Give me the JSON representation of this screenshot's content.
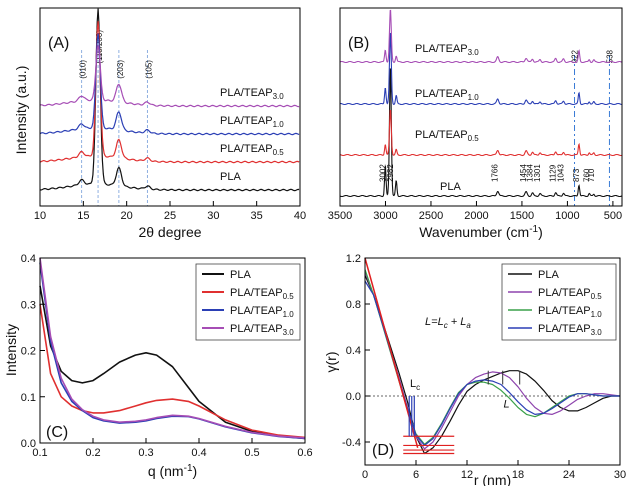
{
  "chart_data": [
    {
      "panel": "(A)",
      "type": "line",
      "xlabel": "2θ degree",
      "ylabel": "Intensity (a.u.)",
      "xlim": [
        10,
        40
      ],
      "xticks": [
        "10",
        "15",
        "20",
        "25",
        "30",
        "35",
        "40"
      ],
      "peaks": [
        {
          "label": "(010)",
          "x": 14.8
        },
        {
          "label": "(110/200)",
          "x": 16.7
        },
        {
          "label": "(203)",
          "x": 19.1
        },
        {
          "label": "(105)",
          "x": 22.4
        }
      ],
      "series": [
        {
          "name": "PLA",
          "color": "#111111",
          "offset": 0
        },
        {
          "name": "PLA/TEAP",
          "sub": "0.5",
          "color": "#e03030",
          "offset": 1
        },
        {
          "name": "PLA/TEAP",
          "sub": "1.0",
          "color": "#2b3fb5",
          "offset": 2
        },
        {
          "name": "PLA/TEAP",
          "sub": "3.0",
          "color": "#a64db5",
          "offset": 3
        }
      ]
    },
    {
      "panel": "(B)",
      "type": "line",
      "xlabel": "Wavenumber (cm",
      "xlabel_sup": "-1",
      "xlabel_end": ")",
      "xlim": [
        3500,
        400
      ],
      "xticks": [
        "3500",
        "3000",
        "2500",
        "2000",
        "1500",
        "1000",
        "500"
      ],
      "peak_labels": [
        "3002",
        "2982",
        "1766",
        "1454",
        "1384",
        "1301",
        "1129",
        "1043",
        "873",
        "760",
        "710"
      ],
      "top_peaks": [
        "922",
        "538"
      ],
      "series": [
        {
          "name": "PLA",
          "color": "#111111"
        },
        {
          "name": "PLA/TEAP",
          "sub": "0.5",
          "color": "#e03030"
        },
        {
          "name": "PLA/TEAP",
          "sub": "1.0",
          "color": "#2b3fb5"
        },
        {
          "name": "PLA/TEAP",
          "sub": "3.0",
          "color": "#a64db5"
        }
      ]
    },
    {
      "panel": "(C)",
      "type": "line",
      "xlabel": "q (nm",
      "xlabel_sup": "-1",
      "xlabel_end": ")",
      "ylabel": "Intensity",
      "xlim": [
        0.1,
        0.6
      ],
      "ylim": [
        0.0,
        0.4
      ],
      "xticks": [
        "0.1",
        "0.2",
        "0.3",
        "0.4",
        "0.5",
        "0.6"
      ],
      "yticks": [
        "0.0",
        "0.1",
        "0.2",
        "0.3",
        "0.4"
      ],
      "legend_position": "top-right",
      "series": [
        {
          "name": "PLA",
          "sub": "",
          "color": "#111111",
          "x": [
            0.1,
            0.12,
            0.14,
            0.16,
            0.18,
            0.2,
            0.22,
            0.25,
            0.28,
            0.3,
            0.32,
            0.35,
            0.38,
            0.4,
            0.45,
            0.5,
            0.55,
            0.6
          ],
          "y": [
            0.34,
            0.21,
            0.155,
            0.135,
            0.13,
            0.135,
            0.15,
            0.175,
            0.19,
            0.195,
            0.19,
            0.165,
            0.12,
            0.09,
            0.045,
            0.025,
            0.015,
            0.01
          ]
        },
        {
          "name": "PLA/TEAP",
          "sub": "0.5",
          "color": "#e03030",
          "x": [
            0.1,
            0.12,
            0.14,
            0.16,
            0.18,
            0.2,
            0.22,
            0.25,
            0.28,
            0.3,
            0.32,
            0.35,
            0.38,
            0.4,
            0.45,
            0.5,
            0.55,
            0.6
          ],
          "y": [
            0.3,
            0.15,
            0.1,
            0.08,
            0.07,
            0.065,
            0.065,
            0.07,
            0.08,
            0.087,
            0.092,
            0.095,
            0.09,
            0.08,
            0.05,
            0.028,
            0.017,
            0.012
          ]
        },
        {
          "name": "PLA/TEAP",
          "sub": "1.0",
          "color": "#2b3fb5",
          "x": [
            0.1,
            0.12,
            0.14,
            0.16,
            0.18,
            0.2,
            0.22,
            0.25,
            0.28,
            0.3,
            0.32,
            0.35,
            0.38,
            0.4,
            0.45,
            0.5,
            0.55,
            0.6
          ],
          "y": [
            0.39,
            0.22,
            0.13,
            0.09,
            0.07,
            0.055,
            0.048,
            0.043,
            0.045,
            0.048,
            0.053,
            0.058,
            0.057,
            0.052,
            0.035,
            0.022,
            0.014,
            0.01
          ]
        },
        {
          "name": "PLA/TEAP",
          "sub": "3.0",
          "color": "#a64db5",
          "x": [
            0.1,
            0.12,
            0.14,
            0.16,
            0.18,
            0.2,
            0.22,
            0.25,
            0.28,
            0.3,
            0.32,
            0.35,
            0.38,
            0.4,
            0.45,
            0.5,
            0.55,
            0.6
          ],
          "y": [
            0.4,
            0.23,
            0.14,
            0.095,
            0.072,
            0.058,
            0.05,
            0.045,
            0.047,
            0.05,
            0.055,
            0.06,
            0.058,
            0.053,
            0.036,
            0.023,
            0.015,
            0.011
          ]
        }
      ]
    },
    {
      "panel": "(D)",
      "type": "line",
      "xlabel": "r (nm)",
      "ylabel": "γ(r)",
      "xlim": [
        0,
        30
      ],
      "ylim": [
        -0.6,
        1.2
      ],
      "xticks": [
        "0",
        "6",
        "12",
        "18",
        "24",
        "30"
      ],
      "yticks": [
        "-0.4",
        "0.0",
        "0.4",
        "0.8",
        "1.2"
      ],
      "legend_position": "top-right",
      "equation": "L=L",
      "eq_parts": [
        "L",
        "=",
        "L",
        "c",
        " + ",
        "L",
        "a"
      ],
      "annotation_Lc": [
        "L",
        "c"
      ],
      "annotation_L": "L",
      "series": [
        {
          "name": "PLA",
          "sub": "",
          "color": "#111111",
          "x": [
            0,
            1,
            2,
            3,
            4,
            5,
            6,
            7,
            8,
            9,
            10,
            11,
            12,
            13,
            14,
            15,
            16,
            17,
            18,
            19,
            20,
            21,
            22,
            23,
            24,
            25,
            26,
            27,
            28,
            29,
            30
          ],
          "y": [
            1.05,
            0.88,
            0.66,
            0.43,
            0.2,
            -0.05,
            -0.35,
            -0.5,
            -0.45,
            -0.35,
            -0.22,
            -0.08,
            0.04,
            0.1,
            0.14,
            0.17,
            0.2,
            0.22,
            0.22,
            0.19,
            0.13,
            0.05,
            -0.04,
            -0.1,
            -0.13,
            -0.13,
            -0.1,
            -0.06,
            -0.02,
            0.0,
            0.0
          ]
        },
        {
          "name": "PLA/TEAP",
          "sub": "0.5",
          "color": "#8e44ad",
          "x": [
            0,
            1,
            2,
            3,
            4,
            5,
            6,
            7,
            8,
            9,
            10,
            11,
            12,
            13,
            14,
            15,
            16,
            17,
            18,
            19,
            20,
            21,
            22,
            23,
            24,
            25,
            26,
            27,
            28,
            29,
            30
          ],
          "y": [
            1.08,
            0.88,
            0.64,
            0.4,
            0.16,
            -0.1,
            -0.35,
            -0.46,
            -0.4,
            -0.28,
            -0.14,
            0.0,
            0.1,
            0.16,
            0.19,
            0.21,
            0.2,
            0.16,
            0.08,
            -0.02,
            -0.1,
            -0.15,
            -0.16,
            -0.13,
            -0.08,
            -0.03,
            0.0,
            0.02,
            0.02,
            0.01,
            0.0
          ]
        },
        {
          "name": "PLA/TEAP",
          "sub": "1.0",
          "color": "#3aa04a",
          "x": [
            0,
            1,
            2,
            3,
            4,
            5,
            6,
            7,
            8,
            9,
            10,
            11,
            12,
            13,
            14,
            15,
            16,
            17,
            18,
            19,
            20,
            21,
            22,
            23,
            24,
            25,
            26,
            27,
            28,
            29,
            30
          ],
          "y": [
            1.1,
            0.88,
            0.63,
            0.38,
            0.13,
            -0.12,
            -0.33,
            -0.42,
            -0.36,
            -0.24,
            -0.1,
            0.03,
            0.1,
            0.12,
            0.12,
            0.1,
            0.05,
            -0.02,
            -0.1,
            -0.16,
            -0.18,
            -0.15,
            -0.1,
            -0.05,
            0.0,
            0.02,
            0.02,
            0.01,
            0.0,
            0.0,
            0.0
          ]
        },
        {
          "name": "PLA/TEAP",
          "sub": "3.0",
          "color": "#2b3fb5",
          "x": [
            0,
            1,
            2,
            3,
            4,
            5,
            6,
            7,
            8,
            9,
            10,
            11,
            12,
            13,
            14,
            15,
            16,
            17,
            18,
            19,
            20,
            21,
            22,
            23,
            24,
            25,
            26,
            27,
            28,
            29,
            30
          ],
          "y": [
            1.0,
            0.88,
            0.64,
            0.39,
            0.14,
            -0.11,
            -0.34,
            -0.43,
            -0.37,
            -0.25,
            -0.11,
            0.02,
            0.1,
            0.13,
            0.14,
            0.13,
            0.1,
            0.03,
            -0.05,
            -0.12,
            -0.16,
            -0.15,
            -0.11,
            -0.06,
            -0.01,
            0.02,
            0.02,
            0.01,
            0.0,
            0.0,
            0.0
          ]
        }
      ]
    }
  ]
}
